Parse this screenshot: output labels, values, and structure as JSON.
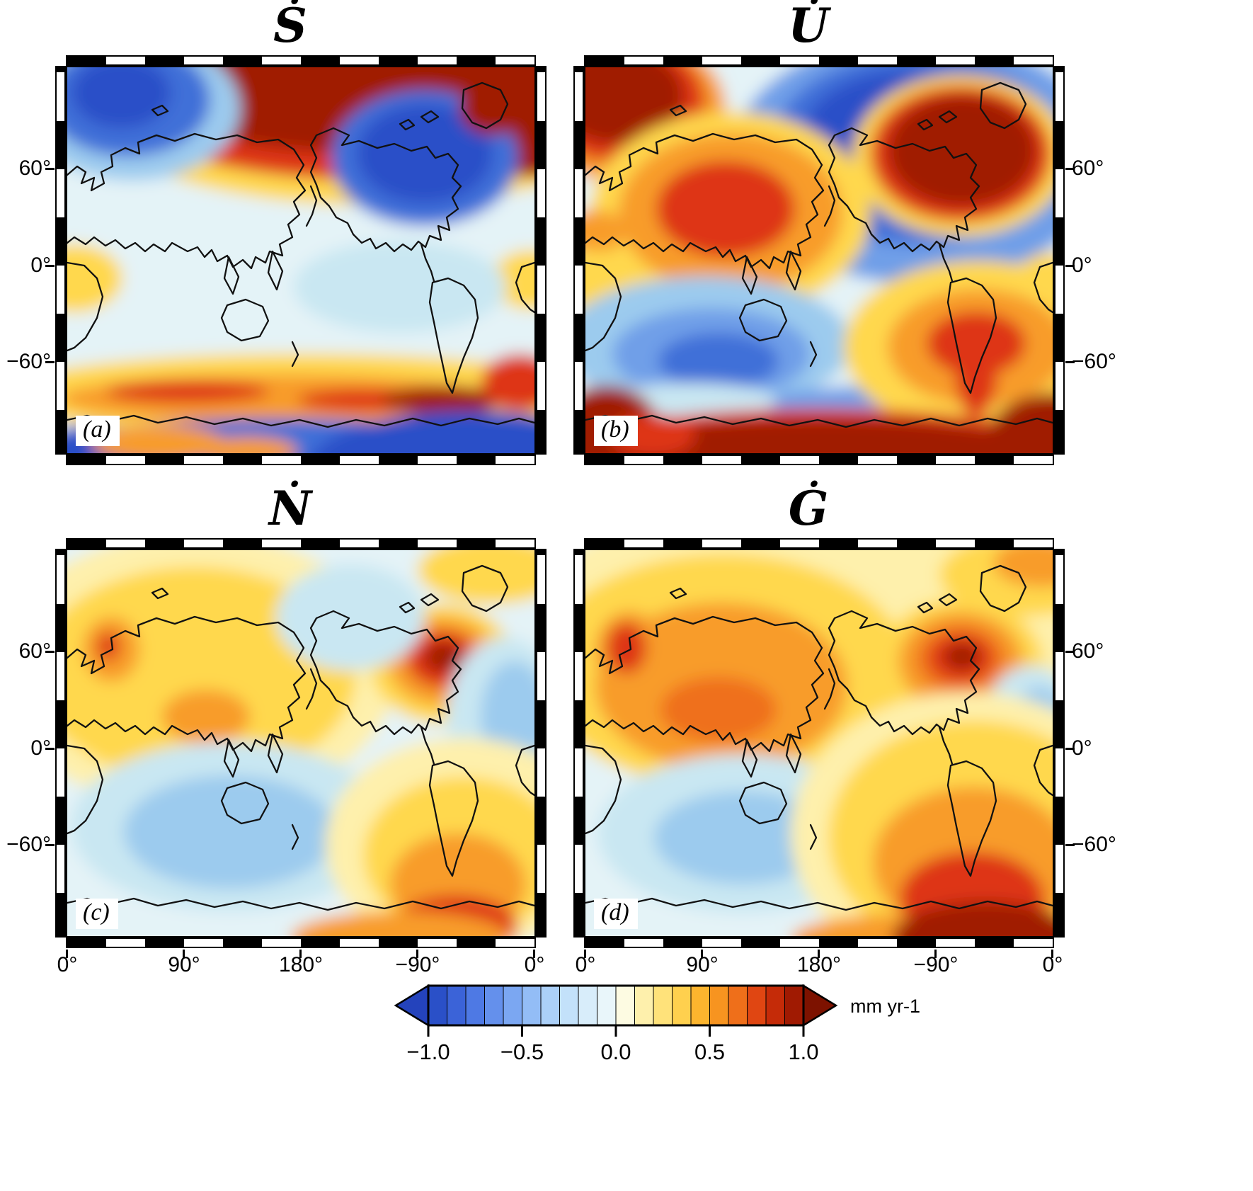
{
  "figure": {
    "panels": [
      {
        "id": "a",
        "title": "Ṡ",
        "corner_label": "(a)"
      },
      {
        "id": "b",
        "title": "U̇",
        "corner_label": "(b)"
      },
      {
        "id": "c",
        "title": "Ṅ",
        "corner_label": "(c)"
      },
      {
        "id": "d",
        "title": "Ġ",
        "corner_label": "(d)"
      }
    ],
    "y_ticks": [
      "60°",
      "0°",
      "−60°"
    ],
    "x_ticks": [
      "0°",
      "90°",
      "180°",
      "−90°",
      "0°"
    ],
    "colorbar": {
      "ticks": [
        "−1.0",
        "−0.5",
        "0.0",
        "0.5",
        "1.0"
      ],
      "unit": "mm yr-1",
      "palette": [
        "#2A50C8",
        "#3B63D8",
        "#4E79E4",
        "#6490EC",
        "#7BA7F2",
        "#93BDF6",
        "#ABD0F8",
        "#C3E1FA",
        "#D8EDFA",
        "#E9F6FA",
        "#FDFBE2",
        "#FEF0AC",
        "#FFE27A",
        "#FFD04E",
        "#FCB52E",
        "#F79420",
        "#EF6F1A",
        "#E04612",
        "#C52B08",
        "#A01A02"
      ],
      "arrow_low": "#2443BC",
      "arrow_high": "#7D1200"
    },
    "colors": {
      "darkRed": "#A01A02",
      "red": "#DE3414",
      "orange": "#EF6F1A",
      "amber": "#F89C2C",
      "yellow": "#FFD84E",
      "paleYellow": "#FEF0AC",
      "cream": "#FDFBE2",
      "paleCyan": "#E4F3F7",
      "lightCyan": "#C9E7F2",
      "lightBlue": "#9CCBEE",
      "skyBlue": "#6F9FE8",
      "blue": "#3F6FD8",
      "deepBlue": "#2A50C8"
    }
  },
  "chart_data": {
    "type": "heatmap",
    "layout": "2x2 grid of filled-contour world maps sharing one diverging color scale",
    "color_scale": {
      "range": [
        -1.0,
        1.0
      ],
      "unit": "mm yr-1",
      "tick_values": [
        -1.0,
        -0.5,
        0.0,
        0.5,
        1.0
      ],
      "diverging": true,
      "low_color": "deep blue (below −1.0, left arrow)",
      "high_color": "dark red (above +1.0, right arrow)",
      "n_steps": 20
    },
    "x_axis": {
      "tick_labels": [
        "0°",
        "90°",
        "180°",
        "−90°",
        "0°"
      ]
    },
    "y_axis": {
      "tick_labels": [
        "60°",
        "0°",
        "−60°"
      ]
    },
    "panels": [
      {
        "label": "(a)",
        "title": "Ṡ",
        "pattern": [
          "dark red (≥ +1) band along the Arctic rim of the map top",
          "strong negative blue cell over the Fennoscandia/Barents sector (top left)",
          "large blue cell over Hudson Bay–Greenland inside the red Arctic band",
          "near-zero pale cyan field across mid and low latitudes",
          "positive yellow–orange band with red streaks along the Southern Ocean (~−60°)",
          "negative blue belt around Antarctica, deep blue at bottom right, orange patches at bottom left"
        ]
      },
      {
        "label": "(b)",
        "title": "U̇",
        "pattern": [
          "strong positive dark red cells over Fennoscandia (top left) and Laurentia/Greenland",
          "broad negative blue ring surrounding the North American positive cell",
          "positive orange/red anomaly over central Asia",
          "positive yellow–orange cell in the South Atlantic with red core near Patagonia",
          "negative blue band over the southern Indian Ocean/Australia sector",
          "strong positive dark red field over Antarctica along the map bottom"
        ]
      },
      {
        "label": "(c)",
        "title": "Ṅ",
        "pattern": [
          "weak positive yellow high over Eurasia with a small orange core and orange spot over Scandinavia",
          "pronounced positive peak (orange–red–dark red rings) over Hudson Bay",
          "weak negative light blue lows over the south-central Pacific and west Atlantic",
          "positive yellow–orange–red high over the far South Atlantic strengthening toward the bottom edge"
        ]
      },
      {
        "label": "(d)",
        "title": "Ġ",
        "pattern": [
          "same spatial pattern as (c) but amplified: amber/orange high over Eurasia with yellow fringe",
          "dark red peak over Hudson Bay with concentric orange/yellow rings",
          "light blue lows over the southern Indian/Pacific Ocean and central Atlantic",
          "strong red to dark red high over the far South Atlantic/Antarctic sector at bottom right"
        ]
      }
    ]
  }
}
